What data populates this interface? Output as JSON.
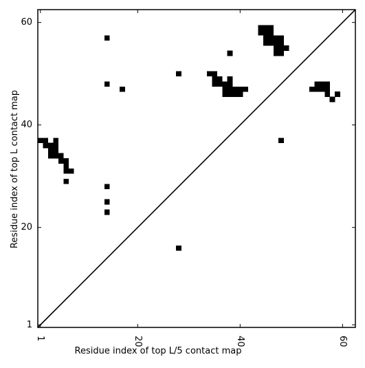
{
  "chart_data": {
    "type": "heatmap",
    "description_kind": "contact-map-scatter",
    "xlabel": "Residue index of top L/5 contact map",
    "ylabel": "Residue index of top L contact map",
    "xlim": [
      0.5,
      62.5
    ],
    "ylim": [
      0.5,
      62.5
    ],
    "x_ticks": [
      1,
      20,
      40,
      60
    ],
    "y_ticks": [
      1,
      20,
      40,
      60
    ],
    "x_tick_labels": [
      "1",
      "20",
      "40",
      "60"
    ],
    "y_tick_labels": [
      "1",
      "20",
      "40",
      "60"
    ],
    "x_tick_rotation_deg": -90,
    "grid": false,
    "diagonal": {
      "from": [
        0.5,
        0.5
      ],
      "to": [
        62.5,
        62.5
      ],
      "color": "#000000"
    },
    "marker_color": "#000000",
    "upper_triangle_contacts": [
      [
        44,
        59
      ],
      [
        45,
        59
      ],
      [
        46,
        59
      ],
      [
        44,
        58
      ],
      [
        45,
        58
      ],
      [
        46,
        58
      ],
      [
        45,
        57
      ],
      [
        46,
        57
      ],
      [
        47,
        57
      ],
      [
        48,
        57
      ],
      [
        45,
        56
      ],
      [
        46,
        56
      ],
      [
        47,
        56
      ],
      [
        48,
        56
      ],
      [
        47,
        55
      ],
      [
        48,
        55
      ],
      [
        49,
        55
      ],
      [
        47,
        54
      ],
      [
        48,
        54
      ],
      [
        14,
        57
      ],
      [
        38,
        54
      ],
      [
        28,
        50
      ],
      [
        34,
        50
      ],
      [
        35,
        50
      ],
      [
        35,
        49
      ],
      [
        36,
        49
      ],
      [
        38,
        49
      ],
      [
        35,
        48
      ],
      [
        36,
        48
      ],
      [
        37,
        48
      ],
      [
        38,
        48
      ],
      [
        37,
        47
      ],
      [
        38,
        47
      ],
      [
        39,
        47
      ],
      [
        40,
        47
      ],
      [
        41,
        47
      ],
      [
        37,
        46
      ],
      [
        38,
        46
      ],
      [
        39,
        46
      ],
      [
        40,
        46
      ],
      [
        14,
        48
      ],
      [
        17,
        47
      ]
    ],
    "lower_triangle_contacts": [
      [
        1,
        37
      ],
      [
        2,
        37
      ],
      [
        4,
        37
      ],
      [
        2,
        36
      ],
      [
        3,
        36
      ],
      [
        4,
        36
      ],
      [
        3,
        35
      ],
      [
        4,
        35
      ],
      [
        3,
        34
      ],
      [
        4,
        34
      ],
      [
        5,
        34
      ],
      [
        5,
        33
      ],
      [
        6,
        33
      ],
      [
        6,
        32
      ],
      [
        6,
        31
      ],
      [
        7,
        31
      ],
      [
        6,
        29
      ],
      [
        14,
        28
      ],
      [
        14,
        25
      ],
      [
        14,
        23
      ],
      [
        28,
        16
      ],
      [
        48,
        37
      ],
      [
        54,
        47
      ],
      [
        55,
        47
      ],
      [
        56,
        47
      ],
      [
        57,
        47
      ],
      [
        55,
        48
      ],
      [
        56,
        48
      ],
      [
        57,
        48
      ],
      [
        57,
        46
      ],
      [
        59,
        46
      ],
      [
        58,
        45
      ]
    ]
  }
}
